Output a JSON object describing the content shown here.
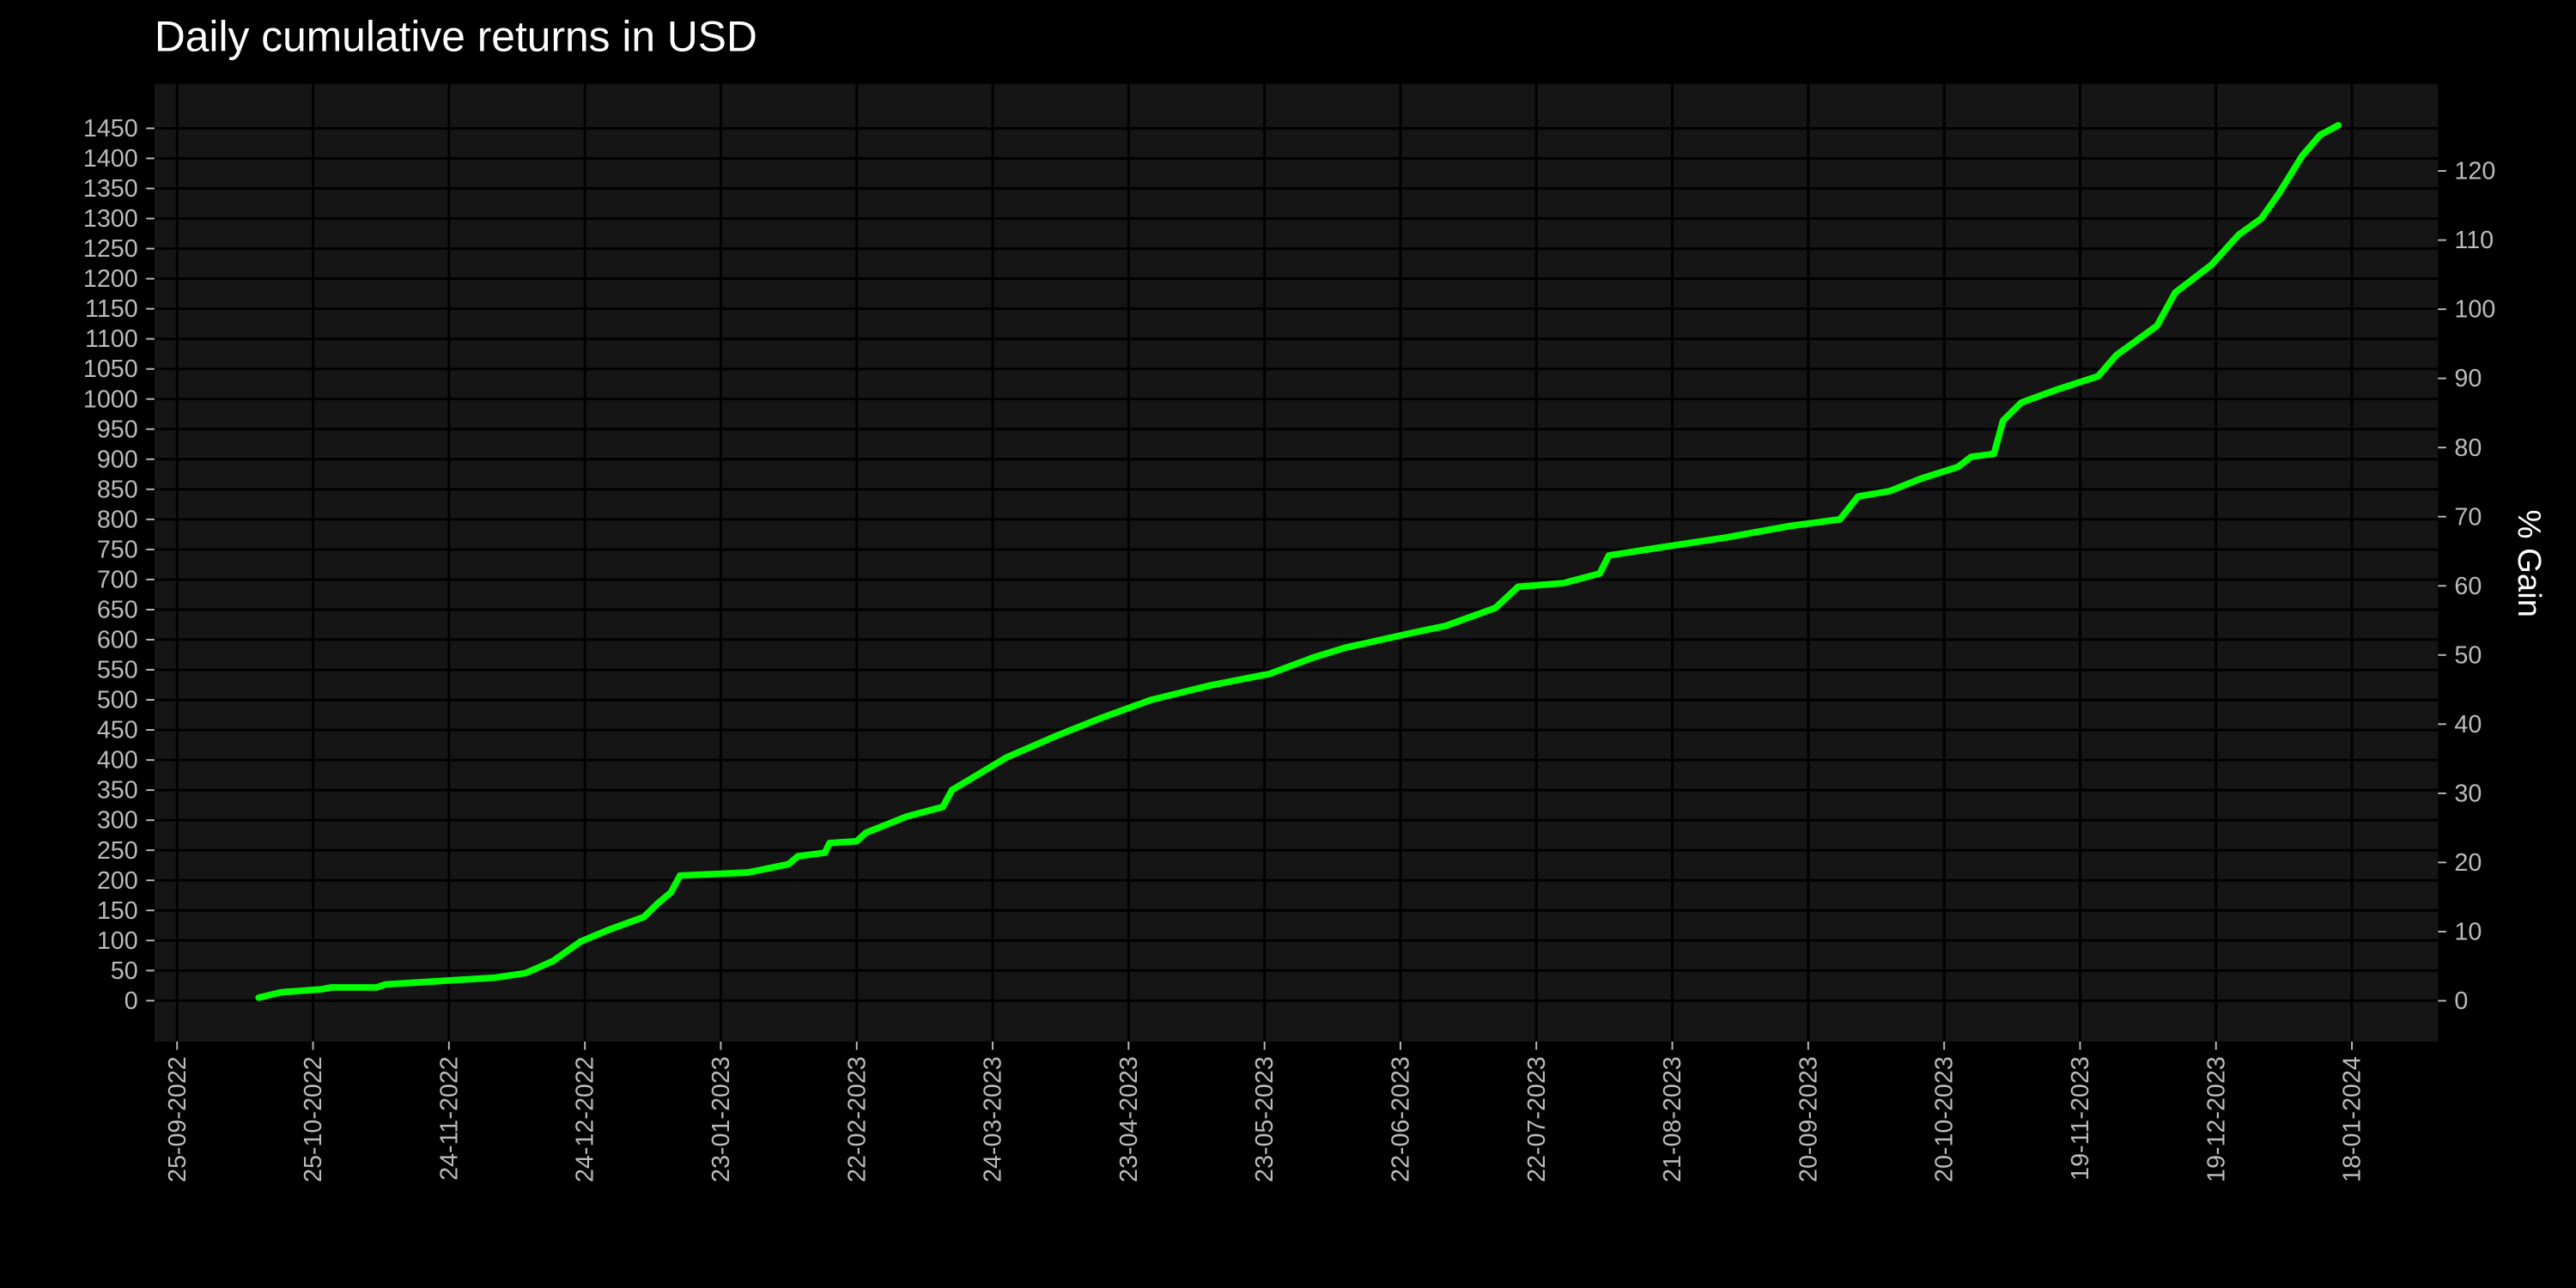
{
  "chart_data": {
    "type": "line",
    "title": "Daily cumulative returns in USD",
    "y2label": "% Gain",
    "x": [
      "13-10-2022",
      "18-10-2022",
      "27-10-2022",
      "29-10-2022",
      "08-11-2022",
      "10-11-2022",
      "23-11-2022",
      "04-12-2022",
      "11-12-2022",
      "17-12-2022",
      "23-12-2022",
      "29-12-2022",
      "06-01-2023",
      "09-01-2023",
      "12-01-2023",
      "14-01-2023",
      "29-01-2023",
      "07-02-2023",
      "09-02-2023",
      "15-02-2023",
      "16-02-2023",
      "22-02-2023",
      "24-02-2023",
      "05-03-2023",
      "13-03-2023",
      "15-03-2023",
      "21-03-2023",
      "27-03-2023",
      "07-04-2023",
      "17-04-2023",
      "28-04-2023",
      "11-05-2023",
      "24-05-2023",
      "03-06-2023",
      "10-06-2023",
      "25-06-2023",
      "02-07-2023",
      "13-07-2023",
      "18-07-2023",
      "28-07-2023",
      "05-08-2023",
      "07-08-2023",
      "19-08-2023",
      "02-09-2023",
      "16-09-2023",
      "27-09-2023",
      "01-10-2023",
      "08-10-2023",
      "15-10-2023",
      "23-10-2023",
      "26-10-2023",
      "31-10-2023",
      "02-11-2023",
      "06-11-2023",
      "14-11-2023",
      "23-11-2023",
      "27-11-2023",
      "02-12-2023",
      "06-12-2023",
      "10-12-2023",
      "18-12-2023",
      "24-12-2023",
      "29-12-2023",
      "02-01-2024",
      "07-01-2024",
      "11-01-2024",
      "15-01-2024"
    ],
    "values": [
      5,
      14,
      19,
      22,
      22,
      27,
      33,
      38,
      46,
      66,
      98,
      117,
      139,
      161,
      180,
      208,
      213,
      227,
      240,
      246,
      262,
      265,
      279,
      306,
      322,
      350,
      377,
      404,
      440,
      470,
      500,
      524,
      543,
      571,
      587,
      612,
      623,
      653,
      688,
      694,
      710,
      740,
      754,
      770,
      789,
      800,
      838,
      847,
      868,
      887,
      904,
      909,
      964,
      994,
      1016,
      1038,
      1073,
      1100,
      1122,
      1177,
      1223,
      1273,
      1300,
      1343,
      1404,
      1439,
      1455
    ],
    "color": "#00ff00",
    "xlim": [
      "20-09-2022",
      "06-02-2024"
    ],
    "xticks": [
      "25-09-2022",
      "25-10-2022",
      "24-11-2022",
      "24-12-2022",
      "23-01-2023",
      "22-02-2023",
      "24-03-2023",
      "23-04-2023",
      "23-05-2023",
      "22-06-2023",
      "22-07-2023",
      "21-08-2023",
      "20-09-2023",
      "20-10-2023",
      "19-11-2023",
      "19-12-2023",
      "18-01-2024"
    ],
    "ylim": [
      -68,
      1524
    ],
    "yticks": [
      0,
      50,
      100,
      150,
      200,
      250,
      300,
      350,
      400,
      450,
      500,
      550,
      600,
      650,
      700,
      750,
      800,
      850,
      900,
      950,
      1000,
      1050,
      1100,
      1150,
      1200,
      1250,
      1300,
      1350,
      1400,
      1450
    ],
    "y2lim": [
      -5.9,
      132.6
    ],
    "y2ticks": [
      0,
      10,
      20,
      30,
      40,
      50,
      60,
      70,
      80,
      90,
      100,
      110,
      120
    ],
    "grid": true
  }
}
